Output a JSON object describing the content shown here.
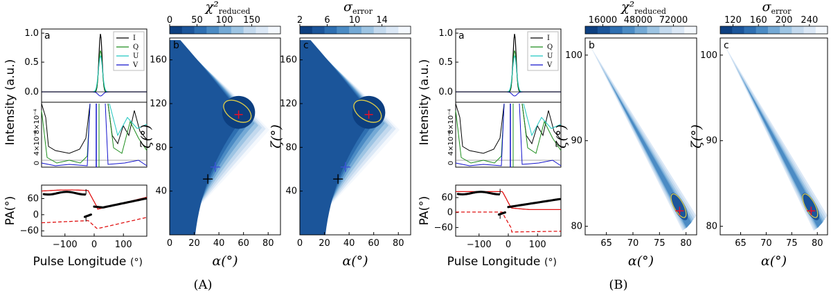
{
  "captions": [
    "(A)",
    "(B)"
  ],
  "chart_data": [
    {
      "id": "A",
      "type": "line",
      "profile": {
        "panel_label": "a",
        "ylabel": "Intensity (a.u.)",
        "yticks": [
          "1.0",
          "0.5",
          "0.0"
        ],
        "legend": [
          "I",
          "Q",
          "U",
          "V"
        ],
        "colors": {
          "I": "#000000",
          "Q": "#1a8c1a",
          "U": "#1fc7c0",
          "V": "#1010cc"
        },
        "zoom_yticks": [
          "0",
          "4×10⁻⁴",
          "8×10⁻⁴"
        ]
      },
      "pa": {
        "type": "scatter",
        "ylabel": "PA(°)",
        "xlabel": "Pulse Longitude",
        "xunit": "(°)",
        "yticks": [
          "60",
          "0",
          "−60"
        ],
        "xticks": [
          "−100",
          "0",
          "100"
        ],
        "xlim": [
          -180,
          180
        ],
        "ylim": [
          -80,
          110
        ]
      },
      "contours": [
        {
          "panel_label": "b",
          "type": "heatmap",
          "colorbar_label": "χ²",
          "colorbar_sub": "reduced",
          "colorbar_ticks": [
            "0",
            "50",
            "100",
            "150"
          ],
          "xlabel": "α(°)",
          "ylabel": "ζ(°)",
          "xticks": [
            "0",
            "20",
            "40",
            "60",
            "80"
          ],
          "yticks": [
            "160",
            "120",
            "80",
            "40"
          ],
          "xlim": [
            0,
            90
          ],
          "ylim": [
            0,
            180
          ],
          "best_fit": {
            "alpha": 56,
            "zeta": 110
          },
          "markers": [
            {
              "alpha": 37,
              "zeta": 62,
              "color": "#3a4fd6"
            },
            {
              "alpha": 31,
              "zeta": 51,
              "color": "#000000"
            }
          ]
        },
        {
          "panel_label": "c",
          "type": "heatmap",
          "colorbar_label": "σ",
          "colorbar_sub": "error",
          "colorbar_ticks": [
            "2",
            "6",
            "10",
            "14"
          ],
          "xlabel": "α(°)",
          "ylabel": "ζ(°)",
          "xticks": [
            "0",
            "20",
            "40",
            "60",
            "80"
          ],
          "yticks": [
            "160",
            "120",
            "80",
            "40"
          ],
          "xlim": [
            0,
            90
          ],
          "ylim": [
            0,
            180
          ],
          "best_fit": {
            "alpha": 56,
            "zeta": 110
          },
          "markers": [
            {
              "alpha": 37,
              "zeta": 62,
              "color": "#3a4fd6"
            },
            {
              "alpha": 31,
              "zeta": 51,
              "color": "#000000"
            }
          ]
        }
      ]
    },
    {
      "id": "B",
      "type": "line",
      "profile": {
        "panel_label": "a",
        "ylabel": "Intensity (a.u.)",
        "yticks": [
          "1.0",
          "0.5",
          "0.0"
        ],
        "legend": [
          "I",
          "Q",
          "U",
          "V"
        ],
        "colors": {
          "I": "#000000",
          "Q": "#1a8c1a",
          "U": "#1fc7c0",
          "V": "#1010cc"
        },
        "zoom_yticks": [
          "0",
          "4×10⁻⁴",
          "8×10⁻⁴"
        ]
      },
      "pa": {
        "type": "scatter",
        "ylabel": "PA(°)",
        "xlabel": "Pulse Longitude",
        "xunit": "(°)",
        "yticks": [
          "60",
          "0",
          "−60"
        ],
        "xticks": [
          "−100",
          "0",
          "100"
        ],
        "xlim": [
          -180,
          180
        ],
        "ylim": [
          -95,
          110
        ]
      },
      "contours": [
        {
          "panel_label": "b",
          "type": "heatmap",
          "colorbar_label": "χ²",
          "colorbar_sub": "reduced",
          "colorbar_ticks": [
            "16000",
            "48000",
            "72000"
          ],
          "xlabel": "α(°)",
          "ylabel": "ζ(°)",
          "xticks": [
            "65",
            "70",
            "75",
            "80"
          ],
          "yticks": [
            "100",
            "90",
            "80"
          ],
          "xlim": [
            61,
            82
          ],
          "ylim": [
            79,
            102
          ],
          "best_fit": {
            "alpha": 78.8,
            "zeta": 81.8
          }
        },
        {
          "panel_label": "c",
          "type": "heatmap",
          "colorbar_label": "σ",
          "colorbar_sub": "error",
          "colorbar_ticks": [
            "120",
            "160",
            "200",
            "240"
          ],
          "xlabel": "α(°)",
          "ylabel": "ζ(°)",
          "xticks": [
            "65",
            "70",
            "75",
            "80"
          ],
          "yticks": [
            "100",
            "90",
            "80"
          ],
          "xlim": [
            61,
            82
          ],
          "ylim": [
            79,
            102
          ],
          "best_fit": {
            "alpha": 78.8,
            "zeta": 81.8
          }
        }
      ]
    }
  ]
}
